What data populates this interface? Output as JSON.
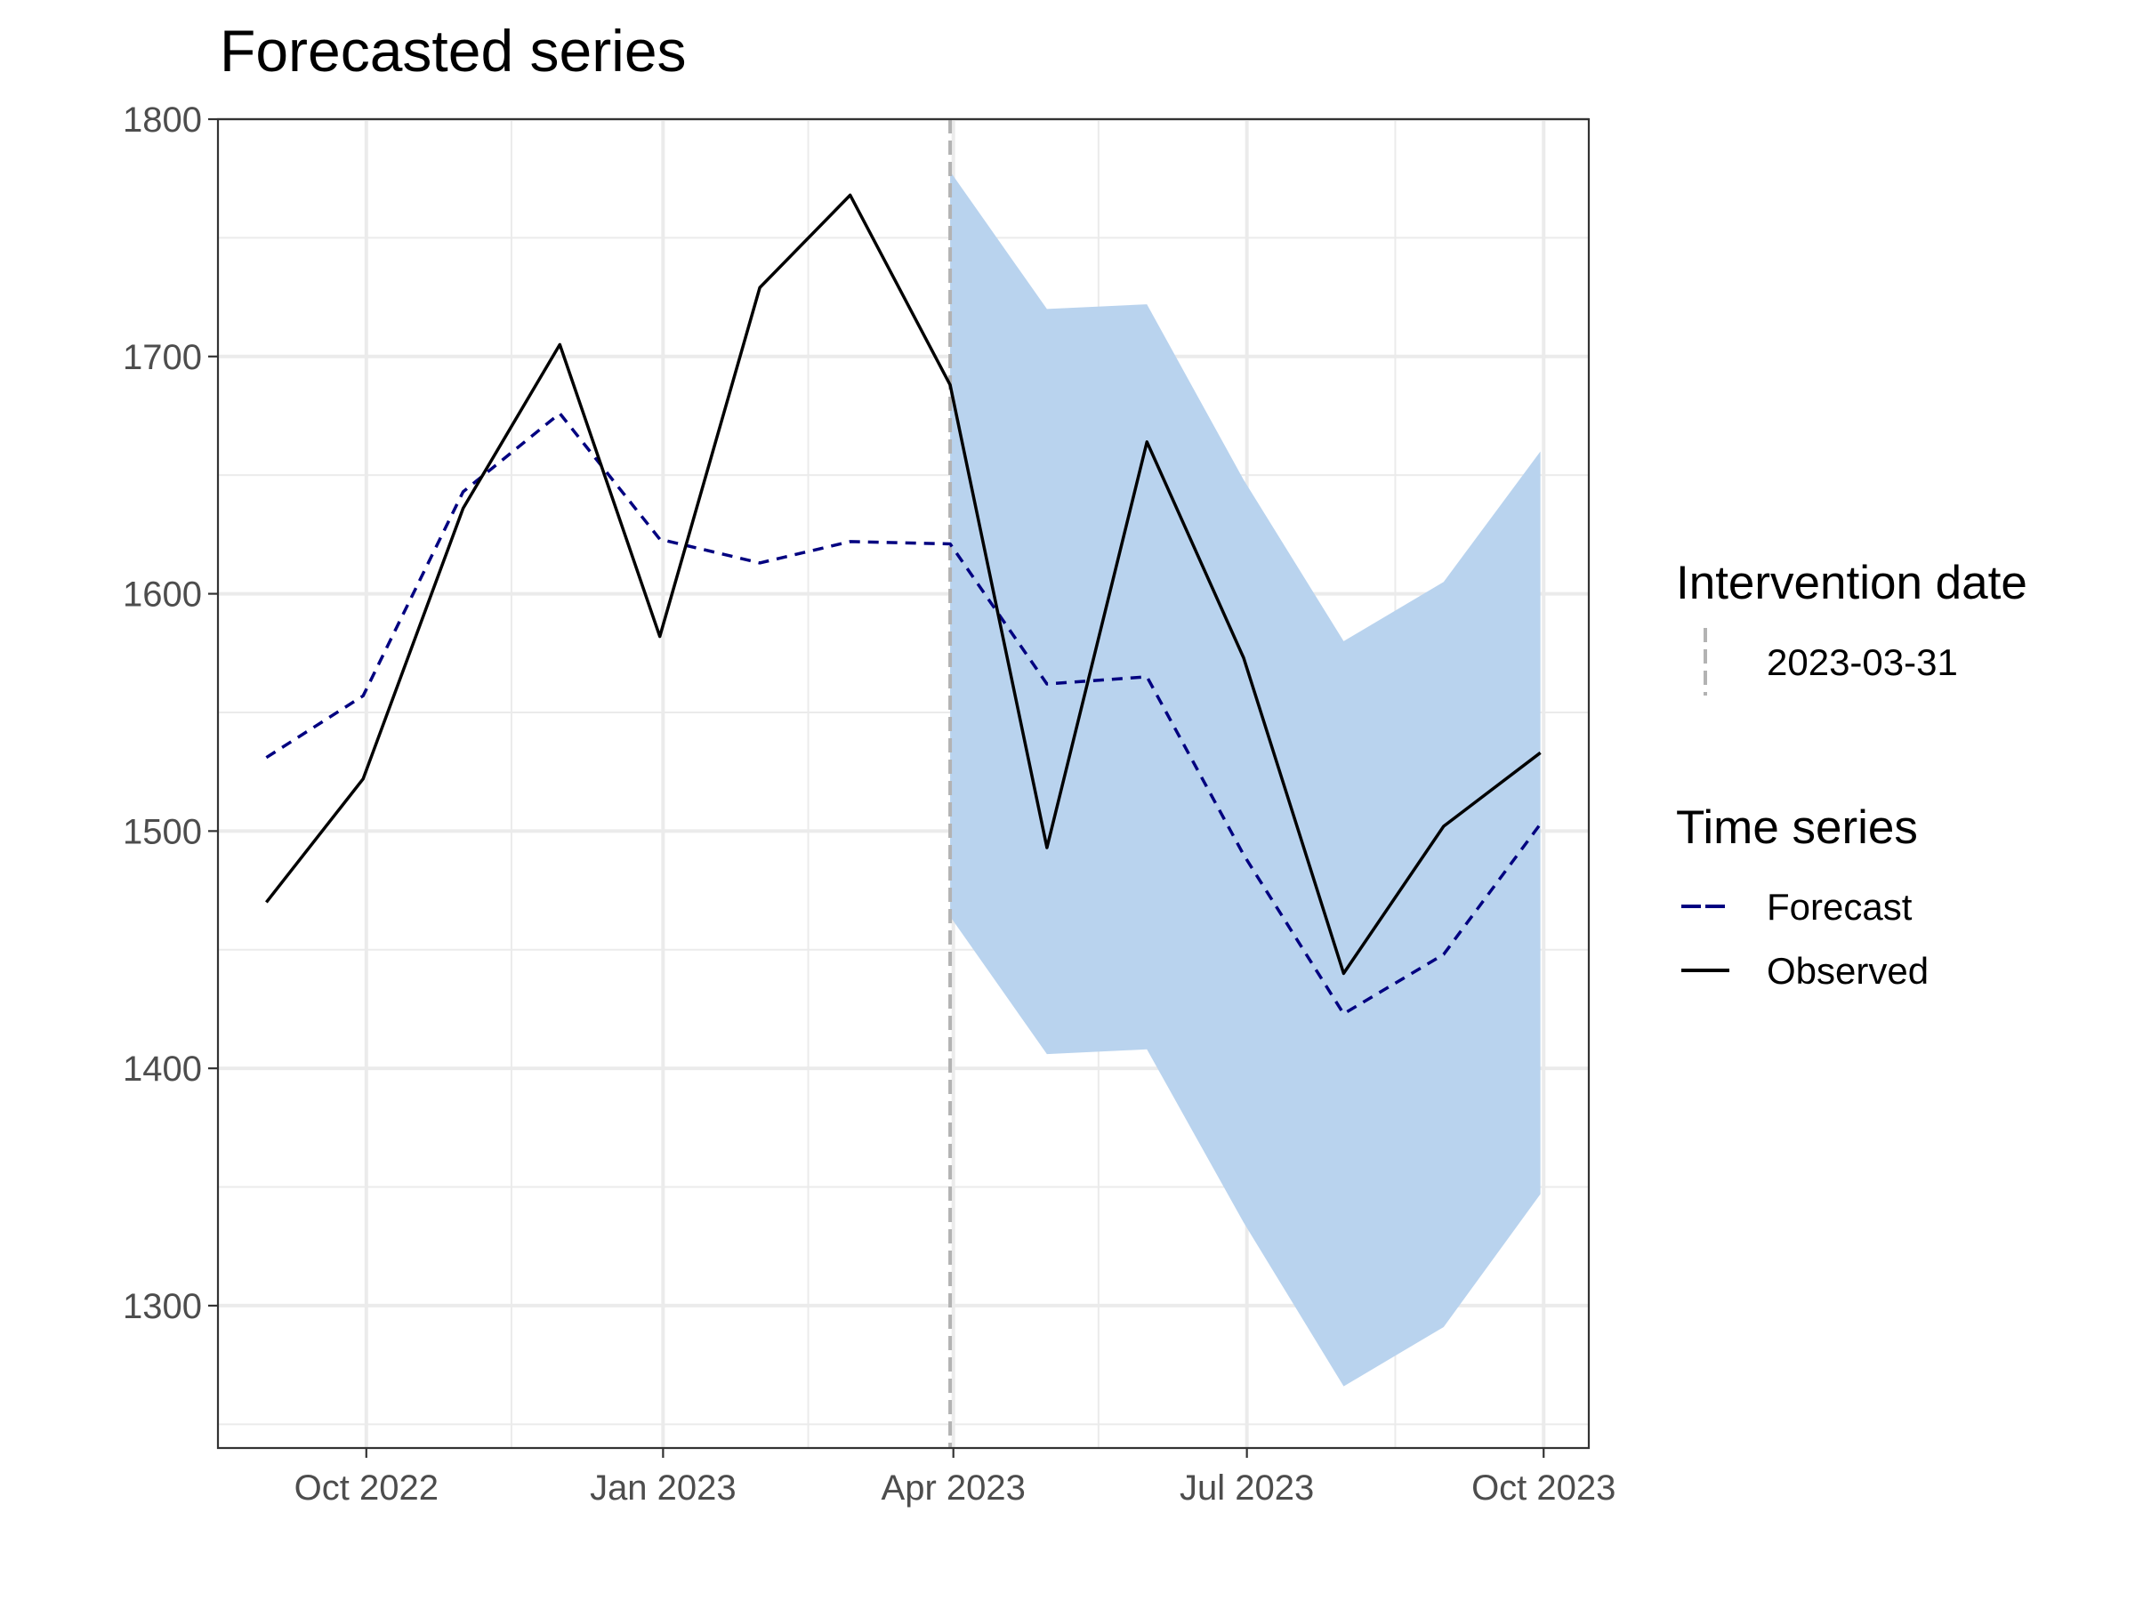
{
  "chart_data": {
    "type": "line",
    "title": "Forecasted series",
    "xlabel": "",
    "ylabel": "",
    "xlim": [
      "2022-08-16",
      "2023-10-15"
    ],
    "ylim": [
      1240,
      1800
    ],
    "x_ticks": [
      {
        "date": "2022-10-01",
        "label": "Oct 2022"
      },
      {
        "date": "2023-01-01",
        "label": "Jan 2023"
      },
      {
        "date": "2023-04-01",
        "label": "Apr 2023"
      },
      {
        "date": "2023-07-01",
        "label": "Jul 2023"
      },
      {
        "date": "2023-10-01",
        "label": "Oct 2023"
      }
    ],
    "x_minor": [
      "2022-11-15",
      "2023-02-15",
      "2023-05-16",
      "2023-08-16"
    ],
    "y_ticks": [
      1300,
      1400,
      1500,
      1600,
      1700,
      1800
    ],
    "grid": true,
    "legend_position": "right",
    "x": [
      "2022-08-31",
      "2022-09-30",
      "2022-10-31",
      "2022-11-30",
      "2022-12-31",
      "2023-01-31",
      "2023-02-28",
      "2023-03-31",
      "2023-04-30",
      "2023-05-31",
      "2023-06-30",
      "2023-07-31",
      "2023-08-31",
      "2023-09-30"
    ],
    "series": [
      {
        "name": "Observed",
        "color": "#000000",
        "linetype": "solid",
        "values": [
          1470,
          1522,
          1636,
          1705,
          1582,
          1729,
          1768,
          1688,
          1493,
          1664,
          1573,
          1440,
          1502,
          1533
        ]
      },
      {
        "name": "Forecast",
        "color": "#000080",
        "linetype": "dashed",
        "values": [
          1531,
          1557,
          1643,
          1676,
          1623,
          1613,
          1622,
          1621,
          1562,
          1565,
          1490,
          1423,
          1448,
          1503
        ]
      }
    ],
    "interval": {
      "color": "#b9d3ee",
      "x": [
        "2023-03-31",
        "2023-04-30",
        "2023-05-31",
        "2023-06-30",
        "2023-07-31",
        "2023-08-31",
        "2023-09-30"
      ],
      "lower": [
        1464,
        1406,
        1408,
        1335,
        1266,
        1291,
        1347
      ],
      "upper": [
        1778,
        1720,
        1722,
        1648,
        1580,
        1605,
        1660
      ]
    },
    "intervention": {
      "date": "2023-03-31",
      "color": "#b3b3b3",
      "linetype": "dashed"
    },
    "legends": [
      {
        "title": "Intervention date",
        "items": [
          {
            "label": "2023-03-31",
            "color": "#b3b3b3",
            "linetype": "dashed",
            "orientation": "vertical"
          }
        ]
      },
      {
        "title": "Time series",
        "items": [
          {
            "label": "Forecast",
            "color": "#000080",
            "linetype": "dashed",
            "orientation": "horizontal"
          },
          {
            "label": "Observed",
            "color": "#000000",
            "linetype": "solid",
            "orientation": "horizontal"
          }
        ]
      }
    ]
  }
}
